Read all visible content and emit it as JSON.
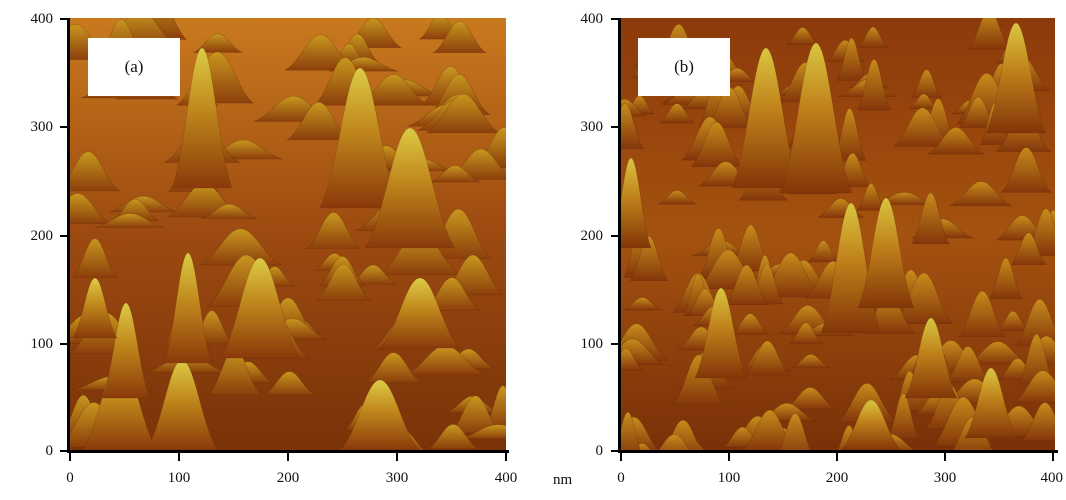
{
  "panels": [
    {
      "tag": "(a)",
      "y_ticks": [
        "400",
        "300",
        "200",
        "100",
        "0"
      ],
      "x_ticks": [
        "0",
        "100",
        "200",
        "300",
        "400"
      ]
    },
    {
      "tag": "(b)",
      "y_ticks": [
        "400",
        "300",
        "200",
        "100",
        "0"
      ],
      "x_ticks": [
        "0",
        "100",
        "200",
        "300",
        "400"
      ]
    }
  ],
  "x_unit": "nm",
  "colors": {
    "valley": "#6b2a06",
    "mid": "#b8620e",
    "peak": "#d4c43a"
  }
}
